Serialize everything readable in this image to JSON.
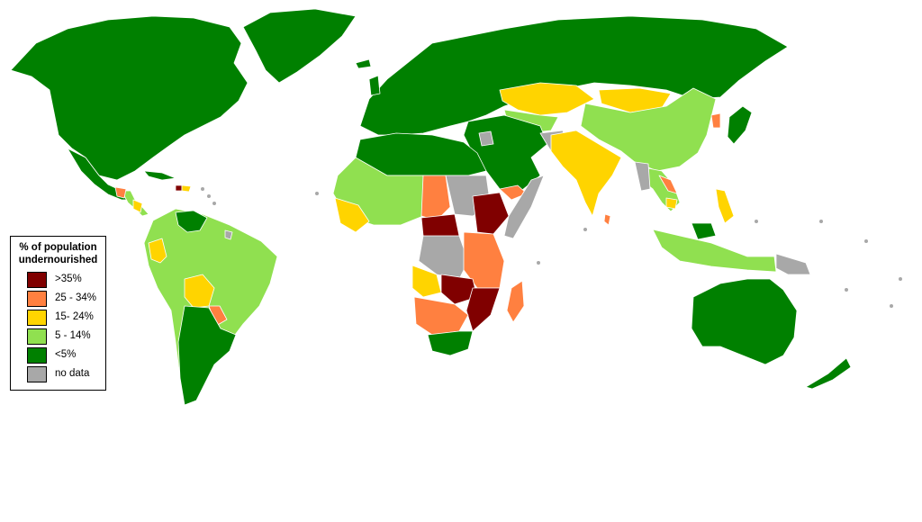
{
  "legend": {
    "title_line1": "% of population",
    "title_line2": "undernourished",
    "items": [
      {
        "label": ">35%",
        "color": "#800000"
      },
      {
        "label": "25 - 34%",
        "color": "#ff8040"
      },
      {
        "label": "15- 24%",
        "color": "#ffd400"
      },
      {
        "label": "5 - 14%",
        "color": "#90e050"
      },
      {
        "label": "<5%",
        "color": "#008000"
      },
      {
        "label": "no data",
        "color": "#a8a8a8"
      }
    ]
  }
}
